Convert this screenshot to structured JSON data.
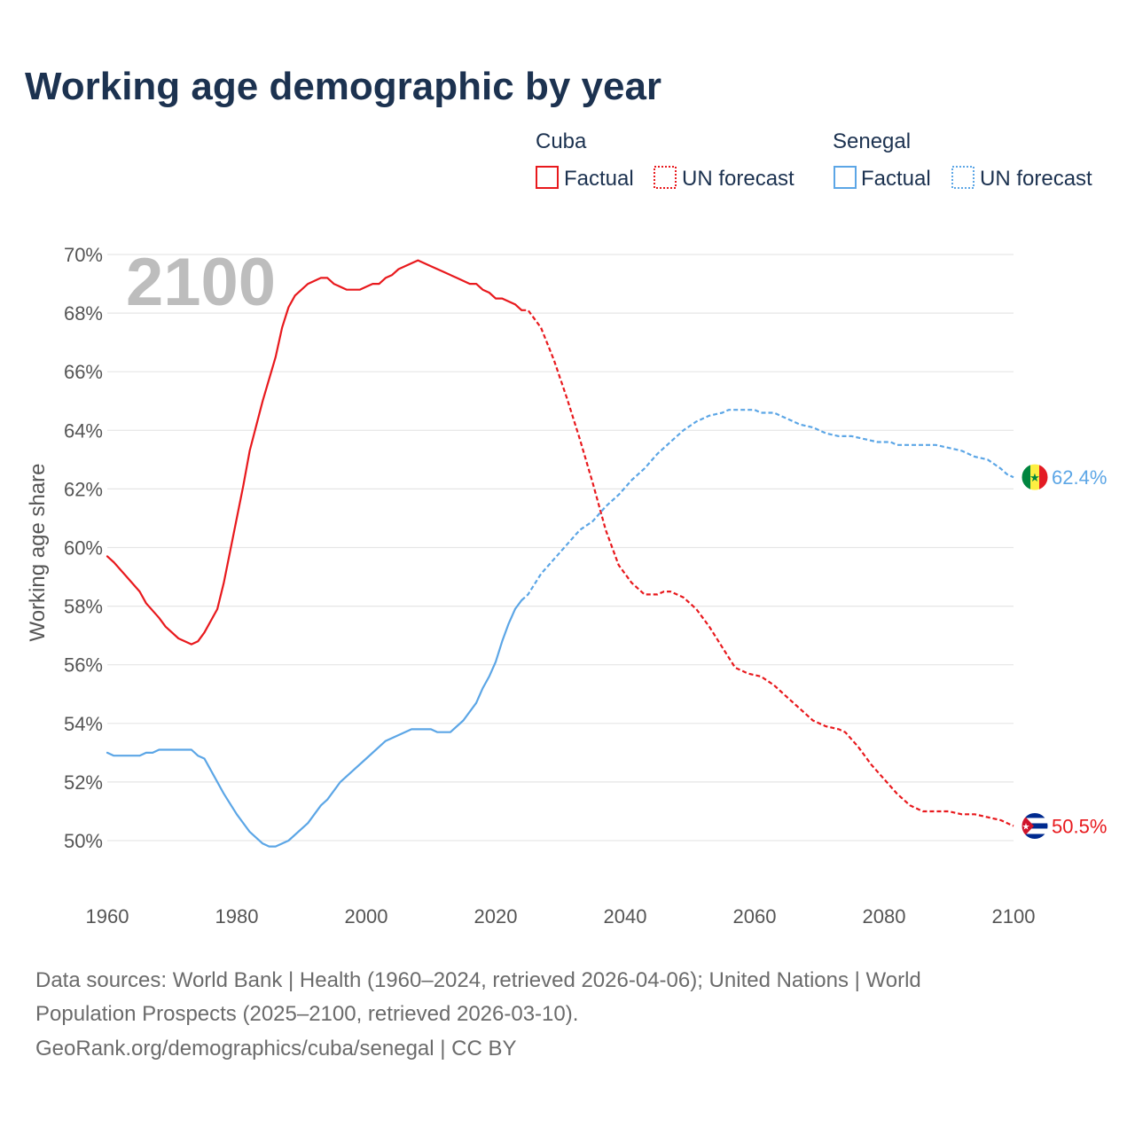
{
  "chart_data": {
    "type": "line",
    "title": "Working age demographic by year",
    "ylabel": "Working age share",
    "xlabel": "",
    "xlim": [
      1960,
      2100
    ],
    "ylim": [
      48,
      70
    ],
    "x_ticks": [
      1960,
      1980,
      2000,
      2020,
      2040,
      2060,
      2080,
      2100
    ],
    "x_tick_labels": [
      "1960",
      "1980",
      "2000",
      "2020",
      "2040",
      "2060",
      "2080",
      "2100"
    ],
    "y_ticks": [
      50,
      52,
      54,
      56,
      58,
      60,
      62,
      64,
      66,
      68,
      70
    ],
    "y_tick_labels": [
      "50%",
      "52%",
      "54%",
      "56%",
      "58%",
      "60%",
      "62%",
      "64%",
      "66%",
      "68%",
      "70%"
    ],
    "year_watermark": "2100",
    "legend": {
      "groups": [
        {
          "country": "Cuba",
          "factual_label": "Factual",
          "forecast_label": "UN forecast",
          "color": "#e8191d"
        },
        {
          "country": "Senegal",
          "factual_label": "Factual",
          "forecast_label": "UN forecast",
          "color": "#5ca6e6"
        }
      ]
    },
    "forecast_start_year": 2024,
    "series": [
      {
        "name": "Cuba",
        "color": "#e8191d",
        "end_label": "50.5%",
        "points": [
          [
            1960,
            59.7
          ],
          [
            1961,
            59.5
          ],
          [
            1963,
            59.0
          ],
          [
            1965,
            58.5
          ],
          [
            1966,
            58.1
          ],
          [
            1968,
            57.6
          ],
          [
            1969,
            57.3
          ],
          [
            1971,
            56.9
          ],
          [
            1973,
            56.7
          ],
          [
            1974,
            56.8
          ],
          [
            1975,
            57.1
          ],
          [
            1977,
            57.9
          ],
          [
            1978,
            58.8
          ],
          [
            1980,
            61.0
          ],
          [
            1981,
            62.1
          ],
          [
            1982,
            63.3
          ],
          [
            1984,
            65.0
          ],
          [
            1986,
            66.5
          ],
          [
            1987,
            67.5
          ],
          [
            1988,
            68.2
          ],
          [
            1989,
            68.6
          ],
          [
            1991,
            69.0
          ],
          [
            1993,
            69.2
          ],
          [
            1994,
            69.2
          ],
          [
            1995,
            69.0
          ],
          [
            1997,
            68.8
          ],
          [
            1999,
            68.8
          ],
          [
            2000,
            68.9
          ],
          [
            2001,
            69.0
          ],
          [
            2002,
            69.0
          ],
          [
            2003,
            69.2
          ],
          [
            2004,
            69.3
          ],
          [
            2005,
            69.5
          ],
          [
            2007,
            69.7
          ],
          [
            2008,
            69.8
          ],
          [
            2010,
            69.6
          ],
          [
            2012,
            69.4
          ],
          [
            2014,
            69.2
          ],
          [
            2016,
            69.0
          ],
          [
            2017,
            69.0
          ],
          [
            2018,
            68.8
          ],
          [
            2019,
            68.7
          ],
          [
            2020,
            68.5
          ],
          [
            2021,
            68.5
          ],
          [
            2023,
            68.3
          ],
          [
            2024,
            68.1
          ],
          [
            2025,
            68.1
          ],
          [
            2027,
            67.5
          ],
          [
            2029,
            66.4
          ],
          [
            2031,
            65.1
          ],
          [
            2033,
            63.7
          ],
          [
            2035,
            62.2
          ],
          [
            2037,
            60.6
          ],
          [
            2039,
            59.4
          ],
          [
            2041,
            58.8
          ],
          [
            2043,
            58.4
          ],
          [
            2045,
            58.4
          ],
          [
            2046,
            58.5
          ],
          [
            2047,
            58.5
          ],
          [
            2049,
            58.3
          ],
          [
            2051,
            57.9
          ],
          [
            2053,
            57.3
          ],
          [
            2055,
            56.6
          ],
          [
            2057,
            55.9
          ],
          [
            2059,
            55.7
          ],
          [
            2061,
            55.6
          ],
          [
            2063,
            55.3
          ],
          [
            2065,
            54.9
          ],
          [
            2067,
            54.5
          ],
          [
            2069,
            54.1
          ],
          [
            2071,
            53.9
          ],
          [
            2073,
            53.8
          ],
          [
            2074,
            53.7
          ],
          [
            2076,
            53.2
          ],
          [
            2078,
            52.6
          ],
          [
            2080,
            52.1
          ],
          [
            2082,
            51.6
          ],
          [
            2084,
            51.2
          ],
          [
            2086,
            51.0
          ],
          [
            2088,
            51.0
          ],
          [
            2090,
            51.0
          ],
          [
            2092,
            50.9
          ],
          [
            2094,
            50.9
          ],
          [
            2096,
            50.8
          ],
          [
            2098,
            50.7
          ],
          [
            2100,
            50.5
          ]
        ]
      },
      {
        "name": "Senegal",
        "color": "#5ca6e6",
        "end_label": "62.4%",
        "points": [
          [
            1960,
            53.0
          ],
          [
            1961,
            52.9
          ],
          [
            1962,
            52.9
          ],
          [
            1965,
            52.9
          ],
          [
            1966,
            53.0
          ],
          [
            1967,
            53.0
          ],
          [
            1968,
            53.1
          ],
          [
            1969,
            53.1
          ],
          [
            1973,
            53.1
          ],
          [
            1974,
            52.9
          ],
          [
            1975,
            52.8
          ],
          [
            1976,
            52.4
          ],
          [
            1978,
            51.6
          ],
          [
            1980,
            50.9
          ],
          [
            1982,
            50.3
          ],
          [
            1984,
            49.9
          ],
          [
            1985,
            49.8
          ],
          [
            1986,
            49.8
          ],
          [
            1988,
            50.0
          ],
          [
            1991,
            50.6
          ],
          [
            1993,
            51.2
          ],
          [
            1994,
            51.4
          ],
          [
            1996,
            52.0
          ],
          [
            1998,
            52.4
          ],
          [
            2000,
            52.8
          ],
          [
            2002,
            53.2
          ],
          [
            2003,
            53.4
          ],
          [
            2005,
            53.6
          ],
          [
            2007,
            53.8
          ],
          [
            2010,
            53.8
          ],
          [
            2011,
            53.7
          ],
          [
            2013,
            53.7
          ],
          [
            2015,
            54.1
          ],
          [
            2017,
            54.7
          ],
          [
            2018,
            55.2
          ],
          [
            2019,
            55.6
          ],
          [
            2020,
            56.1
          ],
          [
            2021,
            56.8
          ],
          [
            2022,
            57.4
          ],
          [
            2023,
            57.9
          ],
          [
            2024,
            58.2
          ],
          [
            2025,
            58.4
          ],
          [
            2027,
            59.1
          ],
          [
            2029,
            59.6
          ],
          [
            2031,
            60.1
          ],
          [
            2033,
            60.6
          ],
          [
            2035,
            60.9
          ],
          [
            2037,
            61.4
          ],
          [
            2039,
            61.8
          ],
          [
            2041,
            62.3
          ],
          [
            2043,
            62.7
          ],
          [
            2045,
            63.2
          ],
          [
            2047,
            63.6
          ],
          [
            2049,
            64.0
          ],
          [
            2051,
            64.3
          ],
          [
            2053,
            64.5
          ],
          [
            2055,
            64.6
          ],
          [
            2056,
            64.7
          ],
          [
            2060,
            64.7
          ],
          [
            2061,
            64.6
          ],
          [
            2063,
            64.6
          ],
          [
            2065,
            64.4
          ],
          [
            2067,
            64.2
          ],
          [
            2069,
            64.1
          ],
          [
            2071,
            63.9
          ],
          [
            2073,
            63.8
          ],
          [
            2075,
            63.8
          ],
          [
            2077,
            63.7
          ],
          [
            2079,
            63.6
          ],
          [
            2081,
            63.6
          ],
          [
            2082,
            63.5
          ],
          [
            2088,
            63.5
          ],
          [
            2090,
            63.4
          ],
          [
            2092,
            63.3
          ],
          [
            2094,
            63.1
          ],
          [
            2096,
            63.0
          ],
          [
            2098,
            62.7
          ],
          [
            2099,
            62.5
          ],
          [
            2100,
            62.4
          ]
        ]
      }
    ],
    "sources_line1": "Data sources: World Bank | Health (1960–2024, retrieved 2026-04-06); United Nations | World",
    "sources_line2": "Population Prospects (2025–2100, retrieved 2026-03-10).",
    "sources_line3": "GeoRank.org/demographics/cuba/senegal | CC BY"
  }
}
